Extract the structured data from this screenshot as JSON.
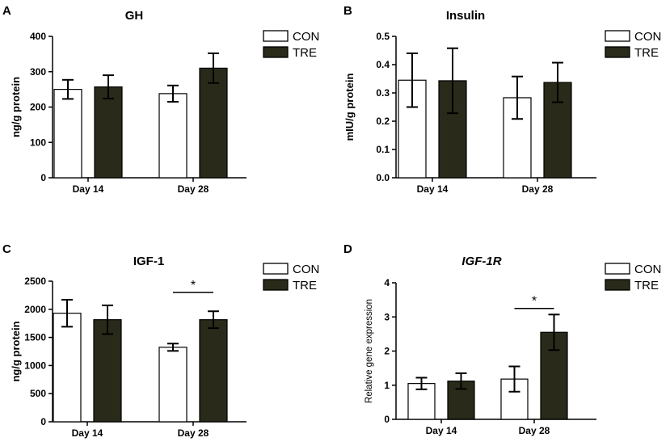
{
  "colors": {
    "con_fill": "#ffffff",
    "tre_fill": "#2a2a1a",
    "line": "#000000"
  },
  "chart_data": [
    {
      "type": "bar",
      "panel": "A",
      "title": "GH",
      "title_italic": false,
      "xlabel": "",
      "ylabel": "ng/g protein",
      "ylabel_style": "bold",
      "ylim": [
        0,
        400
      ],
      "ytick_values": [
        0,
        100,
        200,
        300,
        400
      ],
      "ytick_labels": [
        "0",
        "100",
        "200",
        "300",
        "400"
      ],
      "categories": [
        "Day 14",
        "Day 28"
      ],
      "series": [
        {
          "name": "CON",
          "values": [
            250,
            238
          ],
          "errors": [
            27,
            23
          ]
        },
        {
          "name": "TRE",
          "values": [
            257,
            310
          ],
          "errors": [
            33,
            42
          ]
        }
      ],
      "significance": [],
      "legend_position": "top-right"
    },
    {
      "type": "bar",
      "panel": "B",
      "title": "Insulin",
      "title_italic": false,
      "xlabel": "",
      "ylabel": "mIU/g protein",
      "ylabel_style": "bold",
      "ylim": [
        0,
        0.5
      ],
      "ytick_values": [
        0,
        0.1,
        0.2,
        0.3,
        0.4,
        0.5
      ],
      "ytick_labels": [
        "0.0",
        "0.1",
        "0.2",
        "0.3",
        "0.4",
        "0.5"
      ],
      "categories": [
        "Day 14",
        "Day 28"
      ],
      "series": [
        {
          "name": "CON",
          "values": [
            0.345,
            0.283
          ],
          "errors": [
            0.095,
            0.075
          ]
        },
        {
          "name": "TRE",
          "values": [
            0.343,
            0.337
          ],
          "errors": [
            0.115,
            0.07
          ]
        }
      ],
      "significance": [],
      "legend_position": "top-right"
    },
    {
      "type": "bar",
      "panel": "C",
      "title": "IGF-1",
      "title_italic": false,
      "xlabel": "",
      "ylabel": "ng/g protein",
      "ylabel_style": "bold",
      "ylim": [
        0,
        2500
      ],
      "ytick_values": [
        0,
        500,
        1000,
        1500,
        2000,
        2500
      ],
      "ytick_labels": [
        "0",
        "500",
        "1000",
        "1500",
        "2000",
        "2500"
      ],
      "categories": [
        "Day 14",
        "Day 28"
      ],
      "series": [
        {
          "name": "CON",
          "values": [
            1930,
            1325
          ],
          "errors": [
            240,
            65
          ]
        },
        {
          "name": "TRE",
          "values": [
            1815,
            1815
          ],
          "errors": [
            255,
            150
          ]
        }
      ],
      "significance": [
        {
          "category": 1,
          "label": "*",
          "y": 2300
        }
      ],
      "legend_position": "top-right"
    },
    {
      "type": "bar",
      "panel": "D",
      "title": "IGF-1R",
      "title_italic": true,
      "xlabel": "",
      "ylabel": "Relative gene expression",
      "ylabel_style": "normal",
      "ylim": [
        0,
        4
      ],
      "ytick_values": [
        0,
        1,
        2,
        3,
        4
      ],
      "ytick_labels": [
        "0",
        "1",
        "2",
        "3",
        "4"
      ],
      "categories": [
        "Day 14",
        "Day 28"
      ],
      "series": [
        {
          "name": "CON",
          "values": [
            1.05,
            1.18
          ],
          "errors": [
            0.17,
            0.37
          ]
        },
        {
          "name": "TRE",
          "values": [
            1.12,
            2.55
          ],
          "errors": [
            0.23,
            0.52
          ]
        }
      ],
      "significance": [
        {
          "category": 1,
          "label": "*",
          "y": 3.25
        }
      ],
      "legend_position": "top-right"
    }
  ]
}
